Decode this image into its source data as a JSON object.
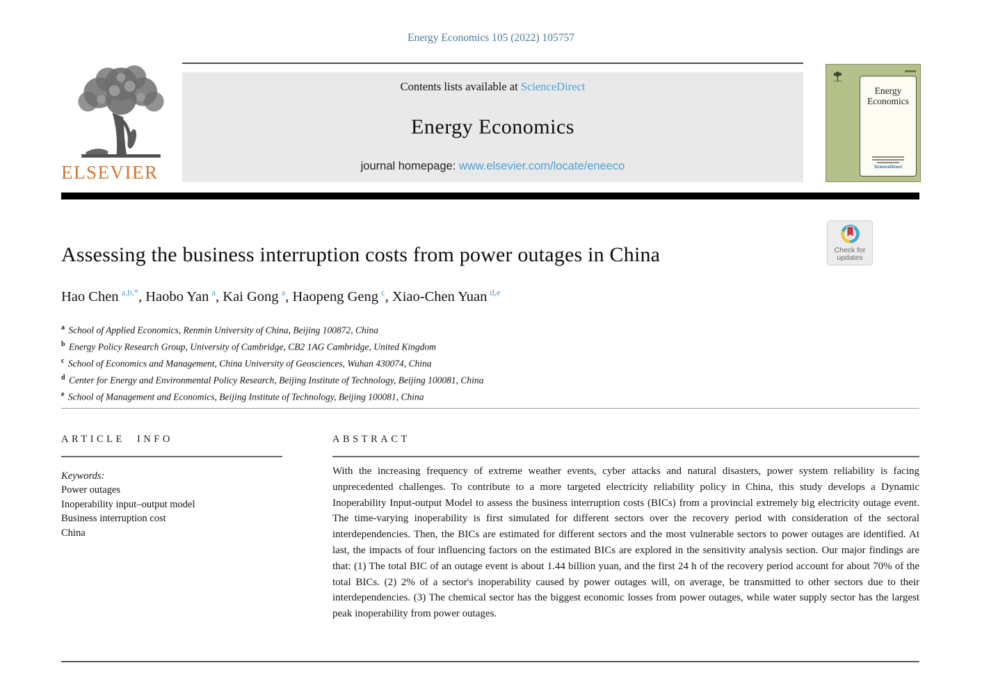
{
  "page": {
    "citation": "Energy Economics 105 (2022) 105757"
  },
  "header": {
    "publisher_wordmark": "ELSEVIER",
    "contents_line_prefix": "Contents lists available at",
    "sciencedirect_link": "ScienceDirect",
    "journal_title": "Energy Economics",
    "homepage_label": "journal homepage:",
    "homepage_url": "www.elsevier.com/locate/eneeco"
  },
  "cover": {
    "title": "Energy Economics",
    "footer_link": "ScienceDirect"
  },
  "update_badge": {
    "line1": "Check for",
    "line2": "updates"
  },
  "article": {
    "title": "Assessing the business interruption costs from power outages in China",
    "author_separator": ", ",
    "authors": [
      {
        "name": "Hao Chen",
        "sup": "a,b,*"
      },
      {
        "name": "Haobo Yan",
        "sup": "a"
      },
      {
        "name": "Kai Gong",
        "sup": "a"
      },
      {
        "name": "Haopeng Geng",
        "sup": "c"
      },
      {
        "name": "Xiao-Chen Yuan",
        "sup": "d,e"
      }
    ],
    "affiliations": [
      {
        "sup": "a",
        "text": "School of Applied Economics, Renmin University of China, Beijing 100872, China"
      },
      {
        "sup": "b",
        "text": "Energy Policy Research Group, University of Cambridge, CB2 1AG Cambridge, United Kingdom"
      },
      {
        "sup": "c",
        "text": "School of Economics and Management, China University of Geosciences, Wuhan 430074, China"
      },
      {
        "sup": "d",
        "text": "Center for Energy and Environmental Policy Research, Beijing Institute of Technology, Beijing 100081, China"
      },
      {
        "sup": "e",
        "text": "School of Management and Economics, Beijing Institute of Technology, Beijing 100081, China"
      }
    ]
  },
  "article_info": {
    "heading": "ARTICLE INFO",
    "keywords_label": "Keywords:",
    "keywords": [
      "Power outages",
      "Inoperability input–output model",
      "Business interruption cost",
      "China"
    ]
  },
  "abstract": {
    "heading": "ABSTRACT",
    "text": "With the increasing frequency of extreme weather events, cyber attacks and natural disasters, power system reliability is facing unprecedented challenges. To contribute to a more targeted electricity reliability policy in China, this study develops a Dynamic Inoperability Input-output Model to assess the business interruption costs (BICs) from a provincial extremely big electricity outage event. The time-varying inoperability is first simulated for different sectors over the recovery period with consideration of the sectoral interdependencies. Then, the BICs are estimated for different sectors and the most vulnerable sectors to power outages are identified. At last, the impacts of four influencing factors on the estimated BICs are explored in the sensitivity analysis section. Our major findings are that: (1) The total BIC of an outage event is about 1.44 billion yuan, and the first 24 h of the recovery period account for about 70% of the total BICs. (2) 2% of a sector's inoperability caused by power outages will, on average, be transmitted to other sectors due to their interdependencies. (3) The chemical sector has the biggest economic losses from power outages, while water supply sector has the largest peak inoperability from power outages."
  },
  "colors": {
    "link_blue": "#4aa0d5",
    "citation_blue": "#4879a5",
    "elsevier_orange": "#d0762f",
    "cover_green": "#b4c18b",
    "badge_red": "#c8373e",
    "badge_blue": "#42a5d5",
    "badge_yellow": "#f2c33d"
  }
}
